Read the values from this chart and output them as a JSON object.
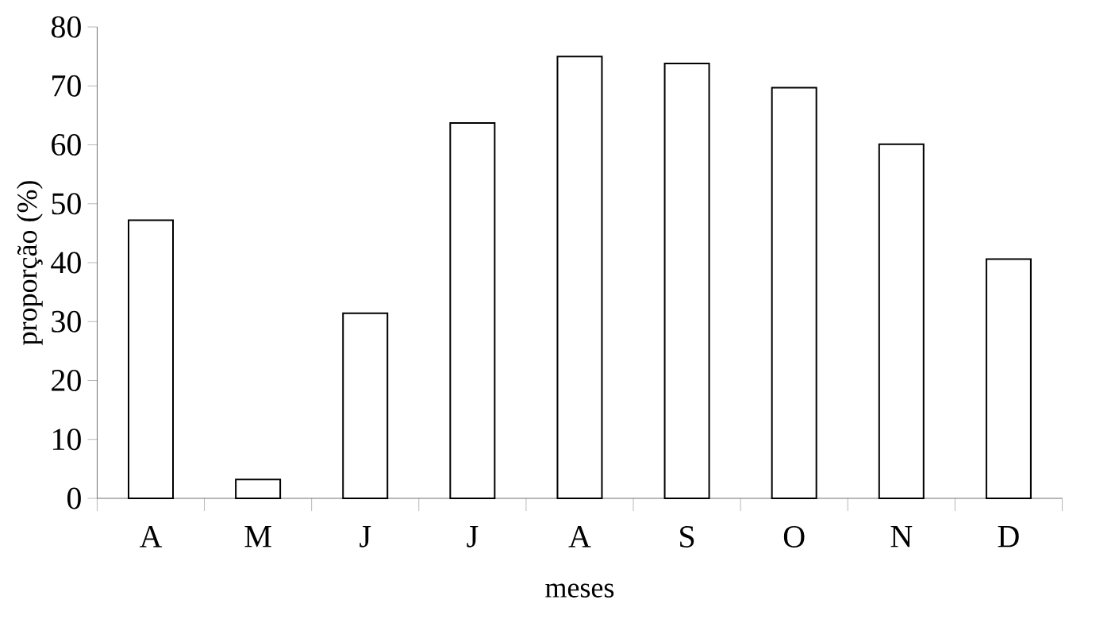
{
  "chart_data": {
    "type": "bar",
    "xlabel": "meses",
    "ylabel": "proporção (%)",
    "categories": [
      "A",
      "M",
      "J",
      "J",
      "A",
      "S",
      "O",
      "N",
      "D"
    ],
    "values": [
      47.2,
      3.2,
      31.4,
      63.7,
      75.0,
      73.8,
      69.7,
      60.1,
      40.6
    ],
    "color": "#ffffff",
    "ylim": [
      0,
      80
    ],
    "yticks": [
      0,
      10,
      20,
      30,
      40,
      50,
      60,
      70,
      80
    ],
    "grid": false
  }
}
